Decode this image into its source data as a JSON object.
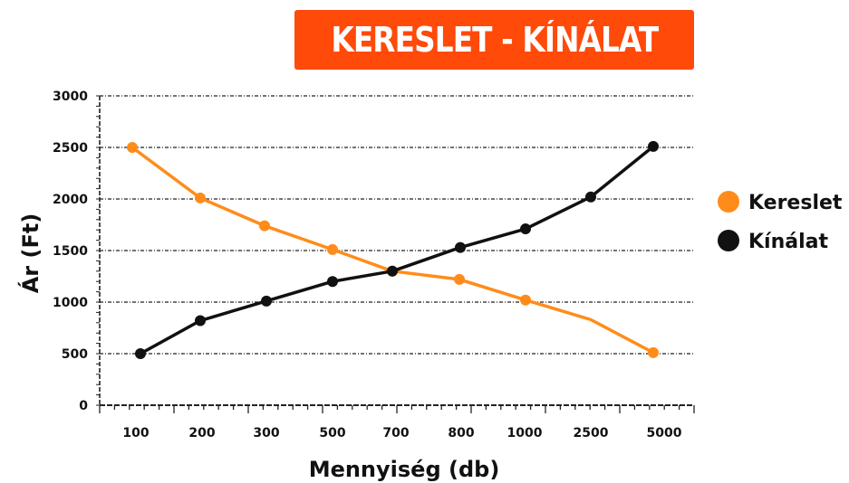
{
  "chart_data": {
    "type": "line",
    "title": "KERESLET - KÍNÁLAT",
    "xlabel": "Mennyiség (db)",
    "ylabel": "Ár (Ft)",
    "categories": [
      "100",
      "200",
      "300",
      "500",
      "700",
      "800",
      "1000",
      "2500",
      "5000"
    ],
    "ylim": [
      0,
      3000
    ],
    "yticks": [
      "0",
      "500",
      "1000",
      "1500",
      "2000",
      "2500",
      "3000"
    ],
    "grid": true,
    "legend_position": "right",
    "series": [
      {
        "name": "Kereslet",
        "color": "#ff8c1a",
        "points": [
          {
            "x": "100",
            "y": 2500
          },
          {
            "x": "200",
            "y": 2010
          },
          {
            "x": "300",
            "y": 1740
          },
          {
            "x": "500",
            "y": 1510
          },
          {
            "x": "700",
            "y": 1300
          },
          {
            "x": "800",
            "y": 1220
          },
          {
            "x": "1000",
            "y": 1020
          },
          {
            "x": "2500",
            "y": 830
          },
          {
            "x": "5000",
            "y": 510
          }
        ]
      },
      {
        "name": "Kínálat",
        "color": "#111111",
        "points": [
          {
            "x": "100",
            "y": 500
          },
          {
            "x": "200",
            "y": 820
          },
          {
            "x": "300",
            "y": 1010
          },
          {
            "x": "500",
            "y": 1200
          },
          {
            "x": "700",
            "y": 1300
          },
          {
            "x": "800",
            "y": 1530
          },
          {
            "x": "1000",
            "y": 1710
          },
          {
            "x": "2500",
            "y": 2020
          },
          {
            "x": "5000",
            "y": 2510
          }
        ]
      }
    ]
  }
}
